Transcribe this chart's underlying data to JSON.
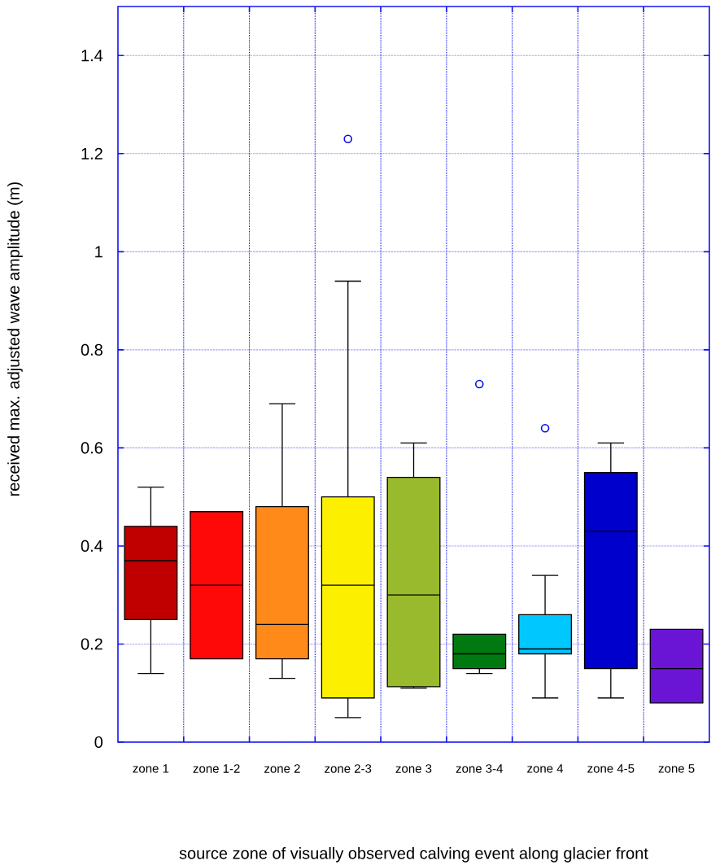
{
  "chart_data": {
    "type": "box",
    "xlabel": "source zone of visually observed calving event along glacier front",
    "ylabel": "received max. adjusted wave amplitude (m)",
    "categories": [
      "zone 1",
      "zone 1-2",
      "zone 2",
      "zone 2-3",
      "zone 3",
      "zone 3-4",
      "zone 4",
      "zone 4-5",
      "zone 5"
    ],
    "boxes": [
      {
        "low": 0.14,
        "q1": 0.25,
        "median": 0.37,
        "q3": 0.44,
        "high": 0.52
      },
      {
        "low": 0.17,
        "q1": 0.17,
        "median": 0.32,
        "q3": 0.47,
        "high": 0.47
      },
      {
        "low": 0.13,
        "q1": 0.17,
        "median": 0.24,
        "q3": 0.48,
        "high": 0.69
      },
      {
        "low": 0.05,
        "q1": 0.09,
        "median": 0.32,
        "q3": 0.5,
        "high": 0.94,
        "outliers": [
          1.23
        ]
      },
      {
        "low": 0.11,
        "q1": 0.113,
        "median": 0.3,
        "q3": 0.54,
        "high": 0.61
      },
      {
        "low": 0.14,
        "q1": 0.15,
        "median": 0.18,
        "q3": 0.22,
        "high": 0.22,
        "outliers": [
          0.73
        ]
      },
      {
        "low": 0.09,
        "q1": 0.18,
        "median": 0.19,
        "q3": 0.26,
        "high": 0.34,
        "outliers": [
          0.64
        ]
      },
      {
        "low": 0.09,
        "q1": 0.15,
        "median": 0.43,
        "q3": 0.55,
        "high": 0.61
      },
      {
        "low": 0.08,
        "q1": 0.08,
        "median": 0.15,
        "q3": 0.23,
        "high": 0.23
      }
    ],
    "colors": [
      "#c00000",
      "#ff0808",
      "#ff8a1a",
      "#fcf000",
      "#9aba2e",
      "#007a10",
      "#00c8ff",
      "#0000cc",
      "#6a14d6"
    ],
    "ylim": [
      0,
      1.5
    ],
    "yticks": [
      0,
      0.2,
      0.4,
      0.6,
      0.8,
      1,
      1.2,
      1.4
    ],
    "grid": true
  }
}
